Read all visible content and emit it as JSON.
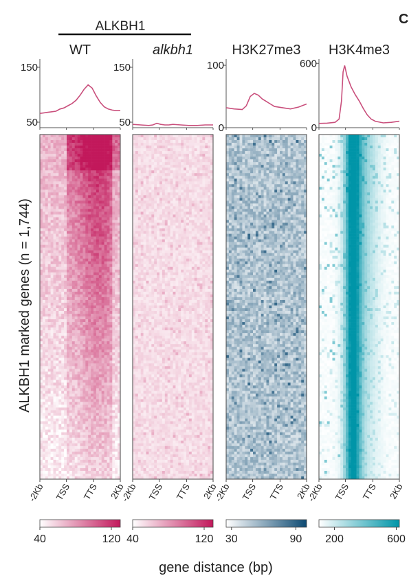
{
  "figure": {
    "group_label": "ALKBH1",
    "corner_letter": "C",
    "yaxis_label": "ALKBH1 marked genes (n = 1,744)",
    "xaxis_label": "gene distance (bp)"
  },
  "chart_data": [
    {
      "type": "line",
      "title": "WT",
      "title_italic": false,
      "x_ticks": [
        "-2Kb",
        "TSS",
        "TTS",
        "2Kb"
      ],
      "y_ticks": [
        50,
        150
      ],
      "ylim": [
        40,
        165
      ],
      "line_color": "#c94f7c",
      "x": [
        0,
        5,
        10,
        15,
        20,
        25,
        30,
        35,
        40,
        45,
        50,
        55,
        60,
        65,
        70,
        75,
        80,
        85,
        90,
        95,
        100
      ],
      "y": [
        66,
        67,
        68,
        69,
        70,
        74,
        76,
        80,
        84,
        90,
        99,
        110,
        118,
        112,
        98,
        86,
        78,
        74,
        72,
        71,
        71
      ],
      "heatmap": {
        "palette": "pink",
        "colorbar_ticks": [
          40,
          120
        ],
        "colorbar_range": [
          40,
          130
        ],
        "color_low": "#ffffff",
        "color_high": "#c2185b"
      }
    },
    {
      "type": "line",
      "title": "alkbh1",
      "title_italic": true,
      "x_ticks": [
        "-2Kb",
        "TSS",
        "TTS",
        "2Kb"
      ],
      "y_ticks": [
        50,
        150
      ],
      "ylim": [
        40,
        165
      ],
      "line_color": "#c94f7c",
      "x": [
        0,
        10,
        20,
        25,
        30,
        35,
        40,
        45,
        50,
        60,
        70,
        80,
        90,
        100
      ],
      "y": [
        46,
        45,
        44,
        45,
        48,
        46,
        45,
        45,
        46,
        45,
        44,
        44,
        45,
        45
      ],
      "heatmap": {
        "palette": "pink-faint",
        "colorbar_ticks": [
          40,
          120
        ],
        "colorbar_range": [
          40,
          130
        ],
        "color_low": "#ffffff",
        "color_high": "#c2185b"
      }
    },
    {
      "type": "line",
      "title": "H3K27me3",
      "title_italic": false,
      "x_ticks": [
        "-2Kb",
        "TSS",
        "TTS",
        "2Kb"
      ],
      "y_ticks": [
        0,
        100
      ],
      "ylim": [
        0,
        110
      ],
      "line_color": "#c94f7c",
      "x": [
        0,
        10,
        20,
        25,
        30,
        35,
        40,
        45,
        50,
        55,
        60,
        70,
        80,
        90,
        100
      ],
      "y": [
        32,
        30,
        29,
        35,
        50,
        55,
        52,
        46,
        42,
        38,
        34,
        32,
        30,
        33,
        38
      ],
      "heatmap": {
        "palette": "blue",
        "colorbar_ticks": [
          30,
          90
        ],
        "colorbar_range": [
          25,
          100
        ],
        "color_low": "#ffffff",
        "color_high": "#0d4a72"
      }
    },
    {
      "type": "line",
      "title": "H3K4me3",
      "title_italic": false,
      "x_ticks": [
        "-2Kb",
        "TSS",
        "TTS",
        "2Kb"
      ],
      "y_ticks": [
        0,
        600
      ],
      "ylim": [
        0,
        640
      ],
      "line_color": "#c94f7c",
      "x": [
        0,
        10,
        20,
        25,
        28,
        30,
        32,
        35,
        40,
        45,
        50,
        55,
        60,
        65,
        70,
        80,
        90,
        100
      ],
      "y": [
        40,
        42,
        50,
        80,
        250,
        520,
        580,
        480,
        380,
        310,
        250,
        180,
        120,
        80,
        60,
        45,
        50,
        60
      ],
      "heatmap": {
        "palette": "teal",
        "colorbar_ticks": [
          200,
          600
        ],
        "colorbar_range": [
          100,
          620
        ],
        "color_low": "#ffffff",
        "color_high": "#0095a8"
      }
    }
  ]
}
